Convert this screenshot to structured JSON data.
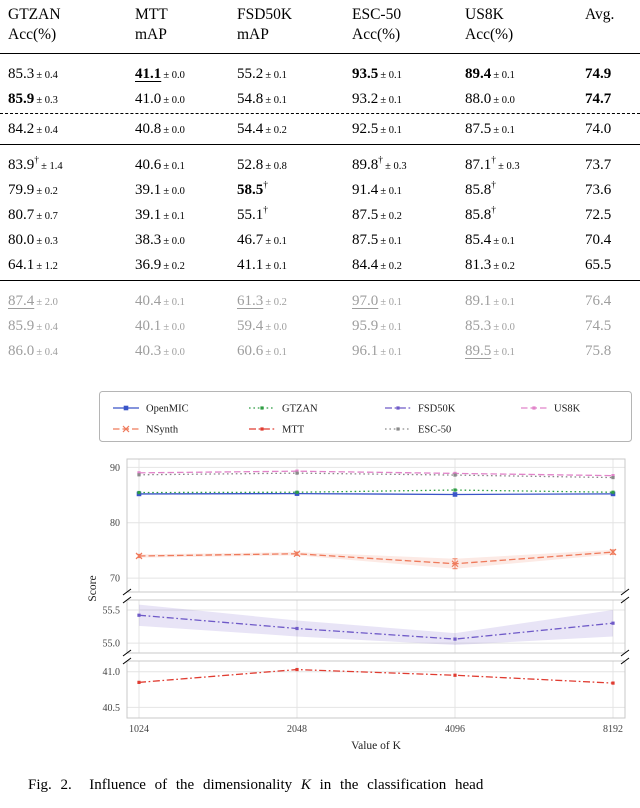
{
  "caption": {
    "prefix": "Fig. 2.",
    "body_before": "Influence of the dimensionality",
    "math_var": "K",
    "body_after": "in the classification head"
  },
  "table": {
    "pm_sign": "±",
    "dagger": "†",
    "gray_color": "#9e9e9e",
    "columns": [
      {
        "title": "GTZAN",
        "metric": "Acc(%)"
      },
      {
        "title": "MTT",
        "metric": "mAP"
      },
      {
        "title": "FSD50K",
        "metric": "mAP"
      },
      {
        "title": "ESC-50",
        "metric": "Acc(%)"
      },
      {
        "title": "US8K",
        "metric": "Acc(%)"
      },
      {
        "title": "Avg.",
        "metric": ""
      }
    ],
    "groups": [
      {
        "gray": false,
        "rows": [
          {
            "cells": [
              {
                "v": "85.3",
                "pm": "0.4"
              },
              {
                "v": "41.1",
                "pm": "0.0",
                "b": true,
                "u": true
              },
              {
                "v": "55.2",
                "pm": "0.1"
              },
              {
                "v": "93.5",
                "pm": "0.1",
                "b": true
              },
              {
                "v": "89.4",
                "pm": "0.1",
                "b": true
              },
              {
                "v": "74.9",
                "b": true
              }
            ]
          },
          {
            "dashed_below": true,
            "cells": [
              {
                "v": "85.9",
                "pm": "0.3",
                "b": true
              },
              {
                "v": "41.0",
                "pm": "0.0"
              },
              {
                "v": "54.8",
                "pm": "0.1"
              },
              {
                "v": "93.2",
                "pm": "0.1"
              },
              {
                "v": "88.0",
                "pm": "0.0"
              },
              {
                "v": "74.7",
                "b": true
              }
            ]
          },
          {
            "cells": [
              {
                "v": "84.2",
                "pm": "0.4"
              },
              {
                "v": "40.8",
                "pm": "0.0"
              },
              {
                "v": "54.4",
                "pm": "0.2"
              },
              {
                "v": "92.5",
                "pm": "0.1"
              },
              {
                "v": "87.5",
                "pm": "0.1"
              },
              {
                "v": "74.0"
              }
            ]
          }
        ]
      },
      {
        "gray": false,
        "rows": [
          {
            "cells": [
              {
                "v": "83.9",
                "d": true,
                "pm": "1.4"
              },
              {
                "v": "40.6",
                "pm": "0.1"
              },
              {
                "v": "52.8",
                "pm": "0.8"
              },
              {
                "v": "89.8",
                "d": true,
                "pm": "0.3"
              },
              {
                "v": "87.1",
                "d": true,
                "pm": "0.3"
              },
              {
                "v": "73.7"
              }
            ]
          },
          {
            "cells": [
              {
                "v": "79.9",
                "pm": "0.2"
              },
              {
                "v": "39.1",
                "pm": "0.0"
              },
              {
                "v": "58.5",
                "b": true,
                "d": true
              },
              {
                "v": "91.4",
                "pm": "0.1"
              },
              {
                "v": "85.8",
                "d": true
              },
              {
                "v": "73.6"
              }
            ]
          },
          {
            "cells": [
              {
                "v": "80.7",
                "pm": "0.7"
              },
              {
                "v": "39.1",
                "pm": "0.1"
              },
              {
                "v": "55.1",
                "d": true
              },
              {
                "v": "87.5",
                "pm": "0.2"
              },
              {
                "v": "85.8",
                "d": true
              },
              {
                "v": "72.5"
              }
            ]
          },
          {
            "cells": [
              {
                "v": "80.0",
                "pm": "0.3"
              },
              {
                "v": "38.3",
                "pm": "0.0"
              },
              {
                "v": "46.7",
                "pm": "0.1"
              },
              {
                "v": "87.5",
                "pm": "0.1"
              },
              {
                "v": "85.4",
                "pm": "0.1"
              },
              {
                "v": "70.4"
              }
            ]
          },
          {
            "cells": [
              {
                "v": "64.1",
                "pm": "1.2"
              },
              {
                "v": "36.9",
                "pm": "0.2"
              },
              {
                "v": "41.1",
                "pm": "0.1"
              },
              {
                "v": "84.4",
                "pm": "0.2"
              },
              {
                "v": "81.3",
                "pm": "0.2"
              },
              {
                "v": "65.5"
              }
            ]
          }
        ]
      },
      {
        "gray": true,
        "rows": [
          {
            "cells": [
              {
                "v": "87.4",
                "pm": "2.0",
                "u": true
              },
              {
                "v": "40.4",
                "pm": "0.1"
              },
              {
                "v": "61.3",
                "pm": "0.2",
                "u": true
              },
              {
                "v": "97.0",
                "pm": "0.1",
                "u": true
              },
              {
                "v": "89.1",
                "pm": "0.1"
              },
              {
                "v": "76.4"
              }
            ]
          },
          {
            "cells": [
              {
                "v": "85.9",
                "pm": "0.4"
              },
              {
                "v": "40.1",
                "pm": "0.0"
              },
              {
                "v": "59.4",
                "pm": "0.0"
              },
              {
                "v": "95.9",
                "pm": "0.1"
              },
              {
                "v": "85.3",
                "pm": "0.0"
              },
              {
                "v": "74.5"
              }
            ]
          },
          {
            "cells": [
              {
                "v": "86.0",
                "pm": "0.4"
              },
              {
                "v": "40.3",
                "pm": "0.0"
              },
              {
                "v": "60.6",
                "pm": "0.1"
              },
              {
                "v": "96.1",
                "pm": "0.1"
              },
              {
                "v": "89.5",
                "pm": "0.1",
                "u": true
              },
              {
                "v": "75.8"
              }
            ]
          }
        ]
      }
    ]
  },
  "chart_data": {
    "type": "line",
    "title": "",
    "xlabel": "Value of K",
    "ylabel": "Score",
    "x": [
      1024,
      2048,
      4096,
      8192
    ],
    "x_scale": "log2",
    "grid": true,
    "legend_position": "top",
    "panels": [
      {
        "ylim": [
          67.5,
          91.5
        ],
        "yticks": [
          70,
          80,
          90
        ]
      },
      {
        "ylim": [
          54.85,
          55.65
        ],
        "yticks": [
          55.0,
          55.5
        ]
      },
      {
        "ylim": [
          40.35,
          41.15
        ],
        "yticks": [
          40.5,
          41.0
        ]
      }
    ],
    "series": [
      {
        "name": "OpenMIC",
        "color": "#3a55c8",
        "style": "solid",
        "marker": "square",
        "panel": 0,
        "values": [
          85.2,
          85.25,
          85.1,
          85.2
        ]
      },
      {
        "name": "GTZAN",
        "color": "#2f9e44",
        "style": "dotted",
        "marker": "square",
        "panel": 0,
        "values": [
          85.45,
          85.5,
          85.9,
          85.5
        ]
      },
      {
        "name": "FSD50K",
        "color": "#6f5ac8",
        "style": "dashdot",
        "marker": "square",
        "panel": 1,
        "values": [
          55.42,
          55.22,
          55.06,
          55.3
        ],
        "band": [
          0.16,
          0.12,
          0.09,
          0.2
        ]
      },
      {
        "name": "US8K",
        "color": "#e183c9",
        "style": "dashed",
        "marker": "square",
        "panel": 0,
        "values": [
          89.0,
          89.3,
          88.9,
          88.5
        ]
      },
      {
        "name": "NSynth",
        "color": "#ef7a5b",
        "style": "dashed",
        "marker": "x",
        "panel": 0,
        "values": [
          74.0,
          74.4,
          72.6,
          74.7
        ],
        "band": [
          0.3,
          0.3,
          0.9,
          0.4
        ],
        "errorbars": true
      },
      {
        "name": "MTT",
        "color": "#e03c31",
        "style": "dashdot",
        "marker": "square",
        "panel": 2,
        "values": [
          40.85,
          41.03,
          40.95,
          40.84
        ]
      },
      {
        "name": "ESC-50",
        "color": "#8a8a8a",
        "style": "dotted",
        "marker": "square",
        "panel": 0,
        "values": [
          88.65,
          88.95,
          88.6,
          88.15
        ]
      }
    ]
  }
}
